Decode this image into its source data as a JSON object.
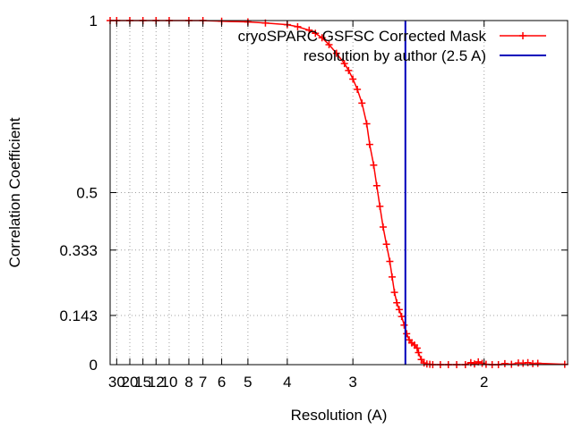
{
  "chart_data": {
    "type": "line",
    "title": "",
    "xlabel": "Resolution (A)",
    "ylabel": "Correlation Coefficient",
    "x_axis_quantity": "resolution_A_reciprocal_scale",
    "x_tick_labels": [
      "30",
      "20",
      "15",
      "12",
      "10",
      "8",
      "7",
      "6",
      "5",
      "4",
      "3",
      "2"
    ],
    "x_tick_values": [
      30,
      20,
      15,
      12,
      10,
      8,
      7,
      6,
      5,
      4,
      3,
      2
    ],
    "xlim": [
      40,
      1.65
    ],
    "y_tick_labels": [
      "0",
      "0.143",
      "0.333",
      "0.5",
      "1"
    ],
    "y_tick_values": [
      0,
      0.143,
      0.333,
      0.5,
      1
    ],
    "ylim": [
      0,
      1
    ],
    "grid": true,
    "legend_position": "top-right",
    "series": [
      {
        "name": "cryoSPARC GSFSC Corrected Mask",
        "color": "#ff0000",
        "marker": "plus",
        "points": [
          [
            40,
            1.0
          ],
          [
            30,
            1.0
          ],
          [
            20,
            1.0
          ],
          [
            15,
            1.0
          ],
          [
            12,
            1.0
          ],
          [
            10,
            1.0
          ],
          [
            8,
            1.0
          ],
          [
            7,
            1.0
          ],
          [
            6,
            0.998
          ],
          [
            5,
            0.996
          ],
          [
            4.5,
            0.993
          ],
          [
            4.0,
            0.988
          ],
          [
            3.8,
            0.982
          ],
          [
            3.6,
            0.972
          ],
          [
            3.5,
            0.963
          ],
          [
            3.4,
            0.95
          ],
          [
            3.3,
            0.93
          ],
          [
            3.2,
            0.905
          ],
          [
            3.1,
            0.875
          ],
          [
            3.05,
            0.855
          ],
          [
            3.0,
            0.83
          ],
          [
            2.95,
            0.8
          ],
          [
            2.9,
            0.76
          ],
          [
            2.85,
            0.7
          ],
          [
            2.82,
            0.64
          ],
          [
            2.78,
            0.58
          ],
          [
            2.75,
            0.52
          ],
          [
            2.72,
            0.46
          ],
          [
            2.69,
            0.4
          ],
          [
            2.66,
            0.35
          ],
          [
            2.63,
            0.3
          ],
          [
            2.61,
            0.255
          ],
          [
            2.59,
            0.21
          ],
          [
            2.57,
            0.18
          ],
          [
            2.55,
            0.16
          ],
          [
            2.53,
            0.14
          ],
          [
            2.51,
            0.115
          ],
          [
            2.49,
            0.09
          ],
          [
            2.47,
            0.072
          ],
          [
            2.45,
            0.063
          ],
          [
            2.43,
            0.057
          ],
          [
            2.41,
            0.048
          ],
          [
            2.4,
            0.035
          ],
          [
            2.38,
            0.015
          ],
          [
            2.36,
            0.005
          ],
          [
            2.34,
            0.002
          ],
          [
            2.32,
            0.001
          ],
          [
            2.3,
            0.0
          ],
          [
            2.25,
            0.0
          ],
          [
            2.2,
            0.0
          ],
          [
            2.15,
            0.0
          ],
          [
            2.1,
            0.0
          ],
          [
            2.07,
            0.006
          ],
          [
            2.05,
            0.002
          ],
          [
            2.03,
            0.008
          ],
          [
            2.01,
            0.004
          ],
          [
            1.99,
            0.001
          ],
          [
            1.96,
            0.0
          ],
          [
            1.93,
            0.0
          ],
          [
            1.9,
            0.003
          ],
          [
            1.87,
            0.001
          ],
          [
            1.84,
            0.005
          ],
          [
            1.82,
            0.004
          ],
          [
            1.8,
            0.006
          ],
          [
            1.78,
            0.003
          ],
          [
            1.76,
            0.004
          ],
          [
            1.66,
            0.001
          ]
        ]
      },
      {
        "name": "resolution by author (2.5 A)",
        "color": "#0000bb",
        "marker": "none",
        "x_constant": 2.5
      }
    ]
  }
}
